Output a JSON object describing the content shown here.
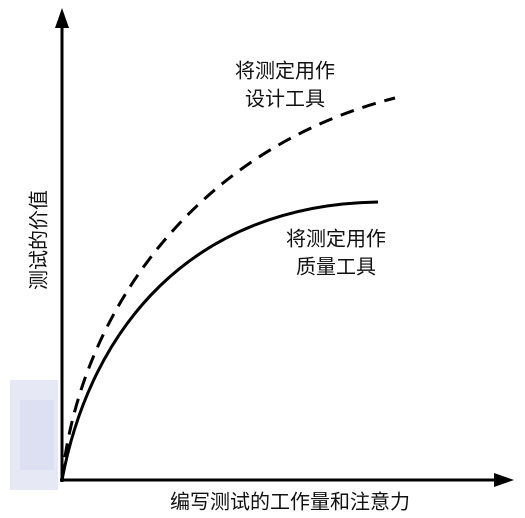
{
  "axes": {
    "y_label": "测试的价值",
    "x_label": "编写测试的工作量和注意力"
  },
  "curves": [
    {
      "label_lines": [
        "将测定用作",
        "设计工具"
      ]
    },
    {
      "label_lines": [
        "将测定用作",
        "质量工具"
      ]
    }
  ]
}
